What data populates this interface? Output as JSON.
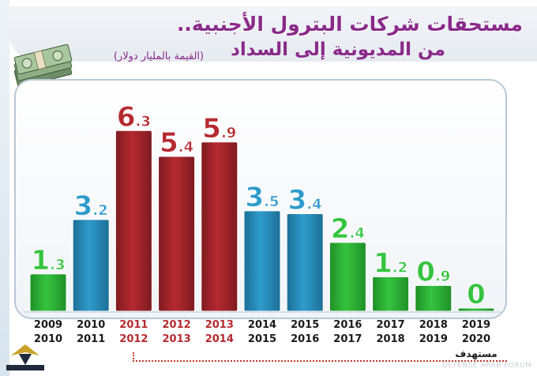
{
  "header": {
    "title_line1": "مستحقات شركات البترول الأجنبية..",
    "title_line2": "من المديونية إلى السداد",
    "subtitle": "(القيمة بالمليار دولار)"
  },
  "footer": {
    "target_label": "مستهدف",
    "watermark": "DEFENSE ARAB FORUM",
    "logo_text": "ARAB DEFENSE FORUM"
  },
  "colors": {
    "green": "#35c43f",
    "blue": "#2f9ccc",
    "red": "#b52a30",
    "title": "#8a2a8a"
  },
  "chart_data": {
    "type": "bar",
    "title": "مستحقات شركات البترول الأجنبية.. من المديونية إلى السداد",
    "subtitle": "(القيمة بالمليار دولار)",
    "categories": [
      [
        "2009",
        "2010"
      ],
      [
        "2010",
        "2011"
      ],
      [
        "2011",
        "2012"
      ],
      [
        "2012",
        "2013"
      ],
      [
        "2013",
        "2014"
      ],
      [
        "2014",
        "2015"
      ],
      [
        "2015",
        "2016"
      ],
      [
        "2016",
        "2017"
      ],
      [
        "2017",
        "2018"
      ],
      [
        "2018",
        "2019"
      ],
      [
        "2019",
        "2020"
      ]
    ],
    "values": [
      1.3,
      3.2,
      6.3,
      5.4,
      5.9,
      3.5,
      3.4,
      2.4,
      1.2,
      0.9,
      0
    ],
    "value_labels": [
      "1.3",
      "3.2",
      "6.3",
      "5.4",
      "5.9",
      "3.5",
      "3.4",
      "2.4",
      "1.2",
      "0.9",
      "0"
    ],
    "bar_colors": [
      "green",
      "blue",
      "red",
      "red",
      "red",
      "blue",
      "blue",
      "green",
      "green",
      "green",
      "green"
    ],
    "highlight_categories": [
      2,
      3,
      4
    ],
    "ylim": [
      0,
      6.5
    ],
    "grid": false,
    "legend": "none"
  }
}
